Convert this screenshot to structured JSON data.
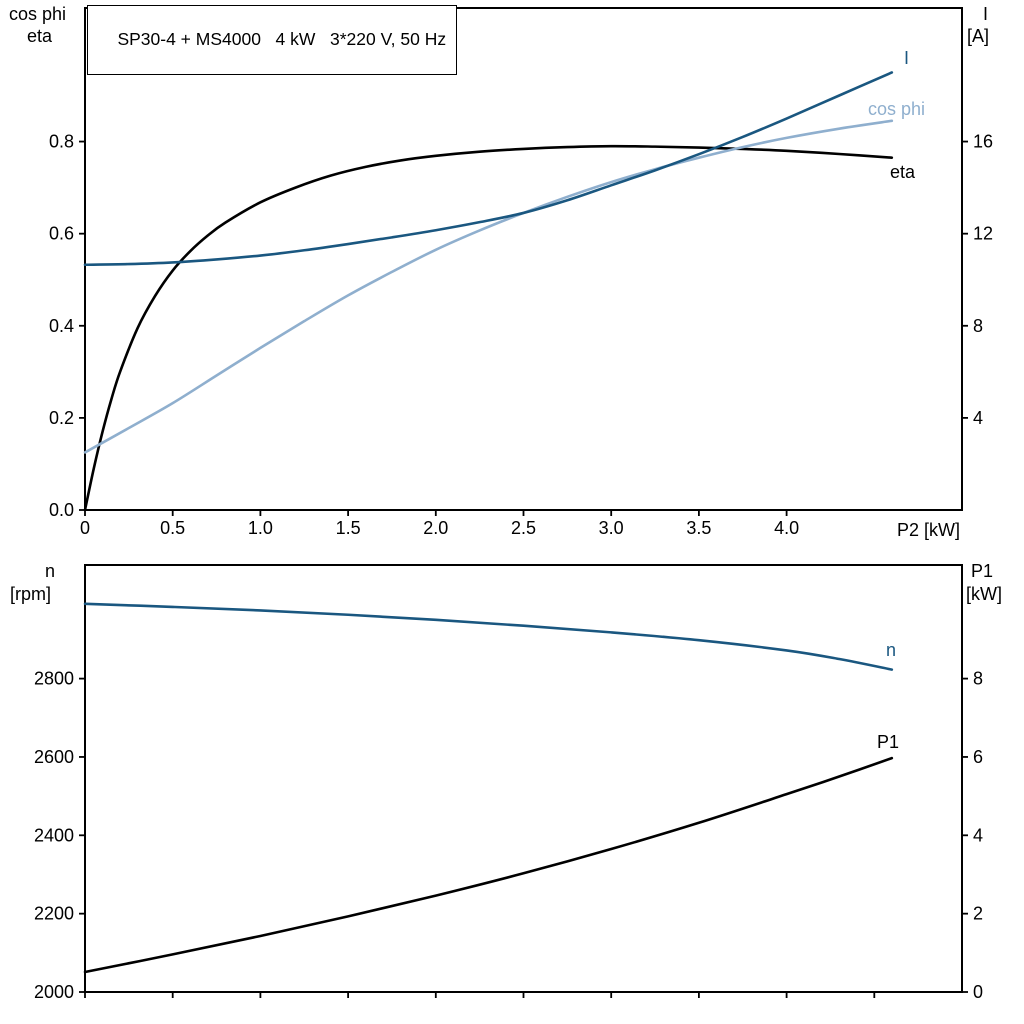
{
  "title": "SP30-4 + MS4000   4 kW   3*220 V, 50 Hz",
  "colors": {
    "dark_blue": "#1a5780",
    "light_blue": "#8fafce",
    "black": "#000000",
    "axis": "#000000"
  },
  "axis_labels": {
    "top_left_1": "cos phi",
    "top_left_2": "eta",
    "top_right_1": "I",
    "top_right_2": "[A]",
    "x_label": "P2 [kW]",
    "bottom_left_1": "n",
    "bottom_left_2": "[rpm]",
    "bottom_right_1": "P1",
    "bottom_right_2": "[kW]"
  },
  "curve_labels": {
    "i": "I",
    "cos_phi": "cos phi",
    "eta": "eta",
    "n": "n",
    "p1": "P1"
  },
  "chart_data": [
    {
      "type": "line",
      "title": "SP30-4 + MS4000 4 kW 3*220 V, 50 Hz",
      "xlabel": "P2 [kW]",
      "xlim": [
        0,
        5
      ],
      "xticks": [
        0,
        0.5,
        1.0,
        1.5,
        2.0,
        2.5,
        3.0,
        3.5,
        4.0
      ],
      "xtick_labels": [
        "0",
        "0.5",
        "1.0",
        "1.5",
        "2.0",
        "2.5",
        "3.0",
        "3.5",
        "4.0"
      ],
      "left_axis": {
        "label": "cos phi / eta",
        "lim": [
          0,
          1.09
        ],
        "ticks": [
          0.0,
          0.2,
          0.4,
          0.6,
          0.8
        ],
        "tick_labels": [
          "0.0",
          "0.2",
          "0.4",
          "0.6",
          "0.8"
        ]
      },
      "right_axis": {
        "label": "I [A]",
        "lim": [
          0,
          21.8
        ],
        "ticks": [
          4,
          8,
          12,
          16
        ],
        "tick_labels": [
          "4",
          "8",
          "12",
          "16"
        ]
      },
      "series": [
        {
          "name": "eta",
          "axis": "left",
          "color_key": "black",
          "x": [
            0,
            0.05,
            0.1,
            0.15,
            0.2,
            0.3,
            0.4,
            0.5,
            0.6,
            0.7,
            0.8,
            1.0,
            1.2,
            1.4,
            1.6,
            1.8,
            2.0,
            2.25,
            2.5,
            2.75,
            3.0,
            3.25,
            3.5,
            3.75,
            4.0,
            4.3,
            4.6
          ],
          "y": [
            0,
            0.09,
            0.17,
            0.24,
            0.3,
            0.395,
            0.465,
            0.52,
            0.562,
            0.596,
            0.624,
            0.668,
            0.7,
            0.726,
            0.745,
            0.759,
            0.769,
            0.778,
            0.784,
            0.788,
            0.79,
            0.789,
            0.787,
            0.784,
            0.78,
            0.773,
            0.765
          ]
        },
        {
          "name": "cos phi",
          "axis": "left",
          "color_key": "light_blue",
          "x": [
            0,
            0.25,
            0.5,
            0.75,
            1.0,
            1.25,
            1.5,
            1.75,
            2.0,
            2.25,
            2.5,
            2.75,
            3.0,
            3.25,
            3.5,
            3.75,
            4.0,
            4.3,
            4.6
          ],
          "y": [
            0.125,
            0.178,
            0.232,
            0.292,
            0.352,
            0.41,
            0.466,
            0.517,
            0.565,
            0.607,
            0.645,
            0.68,
            0.712,
            0.74,
            0.765,
            0.788,
            0.808,
            0.828,
            0.845
          ]
        },
        {
          "name": "I",
          "axis": "right",
          "color_key": "dark_blue",
          "x": [
            0,
            0.25,
            0.5,
            0.75,
            1.0,
            1.25,
            1.5,
            1.75,
            2.0,
            2.25,
            2.5,
            2.75,
            3.0,
            3.25,
            3.5,
            3.75,
            4.0,
            4.3,
            4.6
          ],
          "y": [
            10.65,
            10.68,
            10.75,
            10.88,
            11.05,
            11.28,
            11.55,
            11.84,
            12.15,
            12.5,
            12.9,
            13.45,
            14.1,
            14.75,
            15.45,
            16.2,
            17.0,
            18.0,
            19.0
          ]
        }
      ]
    },
    {
      "type": "line",
      "title": "",
      "xlabel": "",
      "xlim": [
        0,
        5
      ],
      "xticks": [
        0,
        0.5,
        1.0,
        1.5,
        2.0,
        2.5,
        3.0,
        3.5,
        4.0,
        4.5
      ],
      "xtick_labels": [],
      "left_axis": {
        "label": "n [rpm]",
        "lim": [
          2000,
          3090
        ],
        "ticks": [
          2000,
          2200,
          2400,
          2600,
          2800
        ],
        "tick_labels": [
          "2000",
          "2200",
          "2400",
          "2600",
          "2800"
        ]
      },
      "right_axis": {
        "label": "P1 [kW]",
        "lim": [
          0,
          10.9
        ],
        "ticks": [
          0,
          2,
          4,
          6,
          8
        ],
        "tick_labels": [
          "0",
          "2",
          "4",
          "6",
          "8"
        ]
      },
      "series": [
        {
          "name": "n",
          "axis": "left",
          "color_key": "dark_blue",
          "x": [
            0,
            0.5,
            1.0,
            1.5,
            2.0,
            2.5,
            3.0,
            3.5,
            4.0,
            4.3,
            4.6
          ],
          "y": [
            2991,
            2983,
            2974,
            2963,
            2950,
            2935,
            2918,
            2898,
            2872,
            2850,
            2823
          ]
        },
        {
          "name": "P1",
          "axis": "right",
          "color_key": "black",
          "x": [
            0,
            0.5,
            1.0,
            1.5,
            2.0,
            2.5,
            3.0,
            3.5,
            4.0,
            4.3,
            4.6
          ],
          "y": [
            0.51,
            0.96,
            1.43,
            1.93,
            2.46,
            3.03,
            3.65,
            4.32,
            5.05,
            5.5,
            5.97
          ]
        }
      ]
    }
  ]
}
